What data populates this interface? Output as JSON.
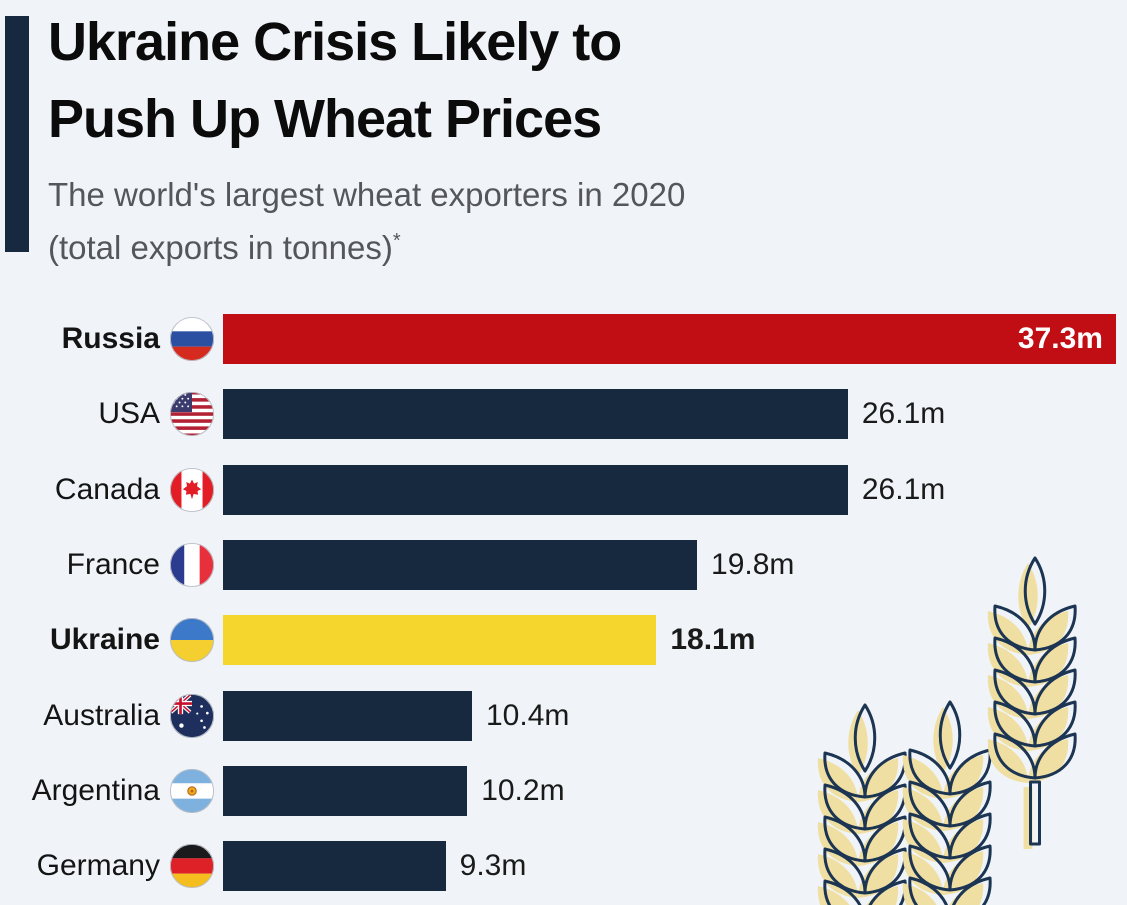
{
  "header": {
    "title_line1": "Ukraine Crisis Likely to",
    "title_line2": "Push Up Wheat Prices",
    "subtitle_line1": "The world's largest wheat exporters in 2020",
    "subtitle_line2": "(total exports in tonnes)",
    "footnote_marker": "*"
  },
  "colors": {
    "background": "#F0F4F8",
    "accent_bar": "#16293E",
    "bar_default": "#16293E",
    "bar_russia_highlight": "#C10E15",
    "bar_ukraine_highlight": "#F5D62C",
    "value_inside_text": "#FFFFFF",
    "value_outside_text": "#1A1A1A",
    "title_text": "#0B0B0B",
    "subtitle_text": "#54565B",
    "wheat_fill": "#F0DFA3",
    "wheat_outline": "#1C3552"
  },
  "chart_data": {
    "type": "bar",
    "orientation": "horizontal",
    "title": "Ukraine Crisis Likely to Push Up Wheat Prices",
    "subtitle": "The world's largest wheat exporters in 2020 (total exports in tonnes)*",
    "unit": "million tonnes",
    "categories": [
      "Russia",
      "USA",
      "Canada",
      "France",
      "Ukraine",
      "Australia",
      "Argentina",
      "Germany"
    ],
    "values": [
      37.3,
      26.1,
      26.1,
      19.8,
      18.1,
      10.4,
      10.2,
      9.3
    ],
    "value_labels": [
      "37.3m",
      "26.1m",
      "26.1m",
      "19.8m",
      "18.1m",
      "10.4m",
      "10.2m",
      "9.3m"
    ],
    "xlim": [
      0,
      37.3
    ],
    "grid": false,
    "legend": false,
    "bar_colors": [
      "#C10E15",
      "#16293E",
      "#16293E",
      "#16293E",
      "#F5D62C",
      "#16293E",
      "#16293E",
      "#16293E"
    ],
    "flags": [
      "russia",
      "usa",
      "canada",
      "france",
      "ukraine",
      "australia",
      "argentina",
      "germany"
    ],
    "bold_rows": [
      "Russia",
      "Ukraine"
    ],
    "value_positions": [
      "inside",
      "outside",
      "outside",
      "outside",
      "outside",
      "outside",
      "outside",
      "outside"
    ]
  }
}
